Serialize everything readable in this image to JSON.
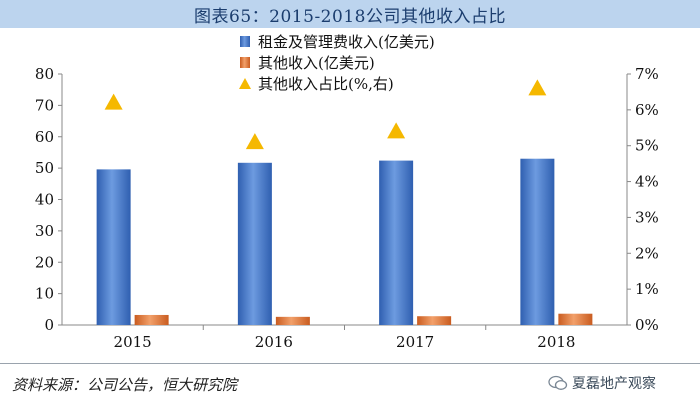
{
  "title": "图表65：2015-2018公司其他收入占比",
  "source": "资料来源：公司公告，恒大研究院",
  "watermark": "夏磊地产观察",
  "colors": {
    "rent_bar": "#4a7fd0",
    "other_bar": "#e07a3c",
    "ratio_marker": "#f5b800",
    "title_bg": "#bcd4ee"
  },
  "chart_data": {
    "type": "bar",
    "categories": [
      "2015",
      "2016",
      "2017",
      "2018"
    ],
    "series": [
      {
        "name": "租金及管理费收入(亿美元)",
        "type": "bar",
        "axis": "left",
        "values": [
          49.6,
          51.7,
          52.4,
          53.0
        ]
      },
      {
        "name": "其他收入(亿美元)",
        "type": "bar",
        "axis": "left",
        "values": [
          3.2,
          2.6,
          2.8,
          3.6
        ]
      },
      {
        "name": "其他收入占比(%,右)",
        "type": "scatter",
        "marker": "triangle",
        "axis": "right",
        "values": [
          6.2,
          5.1,
          5.4,
          6.6
        ]
      }
    ],
    "ylim": [
      0,
      80
    ],
    "yticks": [
      "0",
      "10",
      "20",
      "30",
      "40",
      "50",
      "60",
      "70",
      "80"
    ],
    "y2lim": [
      0,
      7
    ],
    "y2ticks": [
      "0%",
      "1%",
      "2%",
      "3%",
      "4%",
      "5%",
      "6%",
      "7%"
    ],
    "legend_position": "top-center",
    "grid": false
  }
}
